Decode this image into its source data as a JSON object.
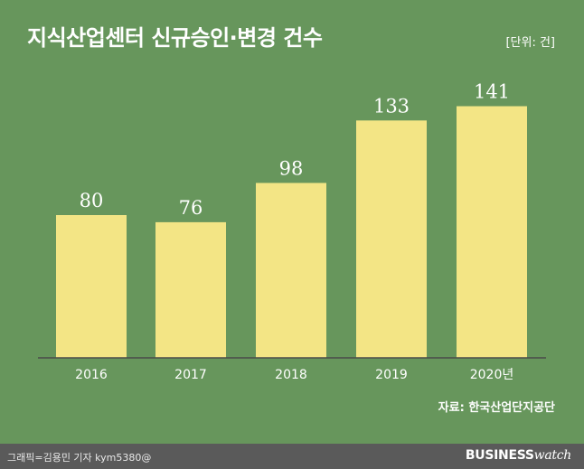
{
  "header": {
    "title": "지식산업센터 신규승인·변경 건수",
    "unit": "[단위: 건]"
  },
  "source": "자료: 한국산업단지공단",
  "footer": {
    "credit": "그래픽=김용민 기자 kym5380@",
    "brand_bold": "BUSINESS",
    "brand_light": "watch"
  },
  "colors": {
    "background": "#67965c",
    "bar": "#f3e585",
    "axis": "#4a4a4a",
    "footer": "#5a5a5a"
  },
  "chart_data": {
    "type": "bar",
    "categories": [
      "2016",
      "2017",
      "2018",
      "2019",
      "2020년"
    ],
    "values": [
      80,
      76,
      98,
      133,
      141
    ],
    "title": "지식산업센터 신규승인·변경 건수",
    "ylabel": "",
    "xlabel": "",
    "ylim": [
      0,
      150
    ],
    "grid": false,
    "data_labels": true
  }
}
